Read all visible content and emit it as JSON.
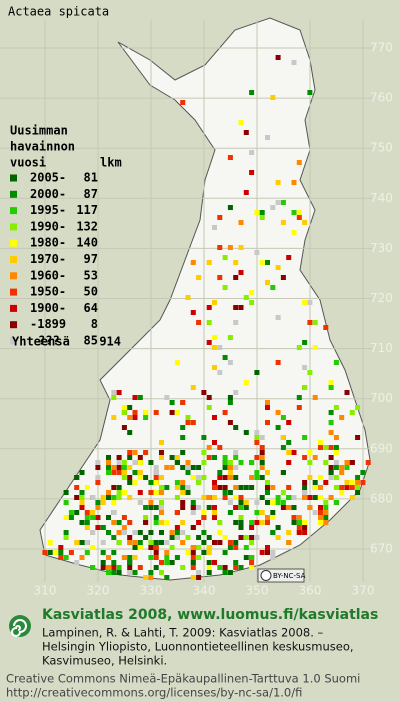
{
  "title": "Actaea spicata",
  "legend": {
    "heading": [
      "Uusimman",
      "havainnon"
    ],
    "col_year": "vuosi",
    "col_count": "lkm",
    "rows": [
      {
        "label": "2005-",
        "count": 81,
        "color": "#006400"
      },
      {
        "label": "2000-",
        "count": 87,
        "color": "#008c00"
      },
      {
        "label": "1995-",
        "count": 117,
        "color": "#22cc00"
      },
      {
        "label": "1990-",
        "count": 132,
        "color": "#88ee00"
      },
      {
        "label": "1980-",
        "count": 140,
        "color": "#ffff00"
      },
      {
        "label": "1970-",
        "count": 97,
        "color": "#ffcc00"
      },
      {
        "label": "1960-",
        "count": 53,
        "color": "#ff8800"
      },
      {
        "label": "1950-",
        "count": 50,
        "color": "#ee3300"
      },
      {
        "label": "1900-",
        "count": 64,
        "color": "#cc0000"
      },
      {
        "label": "-1899",
        "count": 8,
        "color": "#880000"
      },
      {
        "label": "???",
        "count": 85,
        "color": "#c8c8c8"
      }
    ],
    "total_label": "Yhteensä",
    "total": 914
  },
  "grid": {
    "y_labels": [
      770,
      760,
      750,
      740,
      730,
      720,
      710,
      700,
      690,
      680,
      670
    ],
    "x_labels": [
      310,
      320,
      330,
      340,
      350,
      360,
      370
    ]
  },
  "badge": "BY-NC-SA",
  "footer": {
    "atlas_title": "Kasviatlas 2008, www.luomus.fi/kasviatlas",
    "citation": [
      "Lampinen, R. & Lahti, T. 2009: Kasviatlas 2008. –",
      "Helsingin Yliopisto, Luonnontieteellinen keskusmuseo,",
      "Kasvimuseo, Helsinki."
    ],
    "license": [
      "Creative Commons Nimeä-Epäkaupallinen-Tarttuva 1.0 Suomi",
      "http://creativecommons.org/licenses/by-nc-sa/1.0/fi"
    ]
  }
}
